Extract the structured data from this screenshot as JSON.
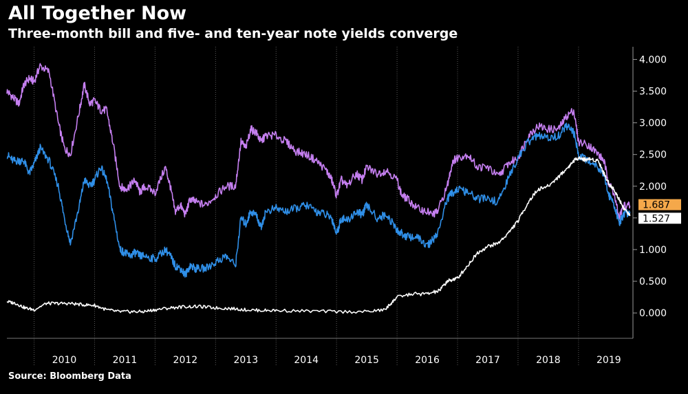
{
  "header": {
    "title": "All Together Now",
    "subtitle": "Three-month bill and five- and ten-year note yields converge"
  },
  "footer": {
    "source": "Source: Bloomberg Data"
  },
  "chart_data": {
    "type": "line",
    "title": "All Together Now",
    "subtitle": "Three-month bill and five- and ten-year note yields converge",
    "xlabel": "",
    "ylabel": "",
    "x_tick_labels": [
      "2010",
      "2011",
      "2012",
      "2013",
      "2014",
      "2015",
      "2016",
      "2017",
      "2018",
      "2019"
    ],
    "y_tick_labels": [
      "0.000",
      "0.500",
      "1.000",
      "1.500",
      "2.000",
      "2.500",
      "3.000",
      "3.500",
      "4.000"
    ],
    "xlim": [
      2009.55,
      2019.9
    ],
    "ylim": [
      -0.4,
      4.2
    ],
    "y_axis_position": "right",
    "grid": {
      "vertical": true,
      "horizontal": false
    },
    "last_value_labels": [
      {
        "value": 1.687,
        "text": "1.687",
        "color": "#f5a84a"
      },
      {
        "value": 1.527,
        "text": "1.527",
        "color": "#ffffff"
      }
    ],
    "series": [
      {
        "color": "#c57ff0",
        "x": [
          2009.55,
          2009.65,
          2009.75,
          2009.83,
          2009.92,
          2010.0,
          2010.1,
          2010.25,
          2010.4,
          2010.5,
          2010.6,
          2010.75,
          2010.83,
          2010.92,
          2011.0,
          2011.1,
          2011.2,
          2011.3,
          2011.42,
          2011.5,
          2011.58,
          2011.67,
          2011.75,
          2011.83,
          2012.0,
          2012.17,
          2012.25,
          2012.33,
          2012.42,
          2012.5,
          2012.58,
          2012.67,
          2012.83,
          2013.0,
          2013.17,
          2013.33,
          2013.42,
          2013.5,
          2013.58,
          2013.67,
          2013.75,
          2013.83,
          2014.0,
          2014.17,
          2014.33,
          2014.5,
          2014.67,
          2014.83,
          2014.92,
          2015.0,
          2015.08,
          2015.17,
          2015.33,
          2015.42,
          2015.5,
          2015.67,
          2015.83,
          2016.0,
          2016.08,
          2016.17,
          2016.33,
          2016.5,
          2016.58,
          2016.67,
          2016.83,
          2016.92,
          2017.0,
          2017.17,
          2017.33,
          2017.5,
          2017.67,
          2017.83,
          2018.0,
          2018.17,
          2018.33,
          2018.5,
          2018.67,
          2018.8,
          2018.92,
          2019.0,
          2019.17,
          2019.33,
          2019.42,
          2019.5,
          2019.58,
          2019.67,
          2019.75,
          2019.85
        ],
        "values": [
          3.5,
          3.4,
          3.3,
          3.6,
          3.7,
          3.65,
          3.9,
          3.8,
          3.0,
          2.6,
          2.5,
          3.2,
          3.6,
          3.3,
          3.35,
          3.2,
          3.2,
          2.7,
          2.0,
          1.95,
          2.0,
          2.1,
          1.9,
          2.0,
          1.9,
          2.3,
          2.0,
          1.6,
          1.7,
          1.55,
          1.8,
          1.75,
          1.7,
          1.85,
          2.0,
          2.0,
          2.7,
          2.6,
          2.9,
          2.85,
          2.7,
          2.8,
          2.8,
          2.7,
          2.55,
          2.5,
          2.4,
          2.25,
          2.1,
          1.85,
          2.1,
          2.0,
          2.2,
          2.1,
          2.3,
          2.2,
          2.25,
          2.1,
          1.85,
          1.8,
          1.65,
          1.6,
          1.55,
          1.6,
          2.0,
          2.4,
          2.45,
          2.5,
          2.3,
          2.3,
          2.15,
          2.35,
          2.45,
          2.8,
          2.95,
          2.9,
          2.9,
          3.1,
          3.2,
          2.7,
          2.65,
          2.5,
          2.4,
          2.05,
          1.9,
          1.5,
          1.7,
          1.69
        ]
      },
      {
        "color": "#2f8fe8",
        "x": [
          2009.55,
          2009.65,
          2009.75,
          2009.83,
          2009.92,
          2010.0,
          2010.1,
          2010.25,
          2010.4,
          2010.5,
          2010.6,
          2010.75,
          2010.83,
          2010.92,
          2011.0,
          2011.1,
          2011.2,
          2011.3,
          2011.42,
          2011.5,
          2011.58,
          2011.67,
          2011.75,
          2011.83,
          2012.0,
          2012.17,
          2012.25,
          2012.33,
          2012.42,
          2012.5,
          2012.58,
          2012.67,
          2012.83,
          2013.0,
          2013.17,
          2013.33,
          2013.42,
          2013.5,
          2013.58,
          2013.67,
          2013.75,
          2013.83,
          2014.0,
          2014.17,
          2014.33,
          2014.5,
          2014.67,
          2014.83,
          2014.92,
          2015.0,
          2015.08,
          2015.17,
          2015.33,
          2015.42,
          2015.5,
          2015.67,
          2015.83,
          2016.0,
          2016.08,
          2016.17,
          2016.33,
          2016.5,
          2016.58,
          2016.67,
          2016.83,
          2016.92,
          2017.0,
          2017.17,
          2017.33,
          2017.5,
          2017.67,
          2017.83,
          2018.0,
          2018.17,
          2018.33,
          2018.5,
          2018.67,
          2018.8,
          2018.92,
          2019.0,
          2019.17,
          2019.33,
          2019.42,
          2019.5,
          2019.58,
          2019.67,
          2019.75,
          2019.85
        ],
        "values": [
          2.5,
          2.4,
          2.4,
          2.4,
          2.2,
          2.35,
          2.6,
          2.4,
          2.0,
          1.5,
          1.1,
          1.7,
          2.1,
          2.0,
          2.1,
          2.3,
          2.1,
          1.6,
          1.0,
          0.95,
          0.9,
          0.95,
          0.9,
          0.9,
          0.85,
          1.0,
          0.9,
          0.75,
          0.7,
          0.6,
          0.75,
          0.7,
          0.7,
          0.8,
          0.9,
          0.75,
          1.5,
          1.4,
          1.6,
          1.55,
          1.35,
          1.6,
          1.65,
          1.6,
          1.65,
          1.7,
          1.6,
          1.55,
          1.5,
          1.25,
          1.5,
          1.45,
          1.6,
          1.55,
          1.7,
          1.5,
          1.55,
          1.3,
          1.25,
          1.2,
          1.2,
          1.05,
          1.15,
          1.25,
          1.8,
          1.9,
          1.95,
          1.9,
          1.8,
          1.8,
          1.75,
          2.1,
          2.45,
          2.7,
          2.8,
          2.75,
          2.8,
          2.95,
          2.85,
          2.5,
          2.4,
          2.3,
          2.2,
          1.85,
          1.75,
          1.4,
          1.55,
          1.6
        ]
      },
      {
        "color": "#ffffff",
        "x": [
          2009.55,
          2009.7,
          2009.85,
          2010.0,
          2010.2,
          2010.4,
          2010.6,
          2010.8,
          2011.0,
          2011.2,
          2011.4,
          2011.6,
          2011.8,
          2012.0,
          2012.25,
          2012.5,
          2012.75,
          2013.0,
          2013.25,
          2013.5,
          2013.75,
          2014.0,
          2014.5,
          2015.0,
          2015.5,
          2015.8,
          2015.9,
          2016.0,
          2016.25,
          2016.5,
          2016.7,
          2016.83,
          2016.9,
          2017.0,
          2017.17,
          2017.33,
          2017.5,
          2017.67,
          2017.83,
          2018.0,
          2018.17,
          2018.33,
          2018.5,
          2018.67,
          2018.83,
          2018.92,
          2019.0,
          2019.1,
          2019.2,
          2019.33,
          2019.42,
          2019.5,
          2019.58,
          2019.67,
          2019.75,
          2019.85
        ],
        "values": [
          0.18,
          0.15,
          0.08,
          0.05,
          0.15,
          0.15,
          0.15,
          0.13,
          0.12,
          0.05,
          0.02,
          0.02,
          0.02,
          0.05,
          0.08,
          0.1,
          0.1,
          0.08,
          0.07,
          0.05,
          0.04,
          0.04,
          0.03,
          0.02,
          0.02,
          0.05,
          0.15,
          0.25,
          0.3,
          0.3,
          0.35,
          0.5,
          0.52,
          0.55,
          0.75,
          0.95,
          1.05,
          1.1,
          1.25,
          1.45,
          1.75,
          1.95,
          2.0,
          2.15,
          2.3,
          2.4,
          2.45,
          2.42,
          2.43,
          2.4,
          2.2,
          2.05,
          1.95,
          1.8,
          1.65,
          1.53
        ]
      }
    ]
  }
}
